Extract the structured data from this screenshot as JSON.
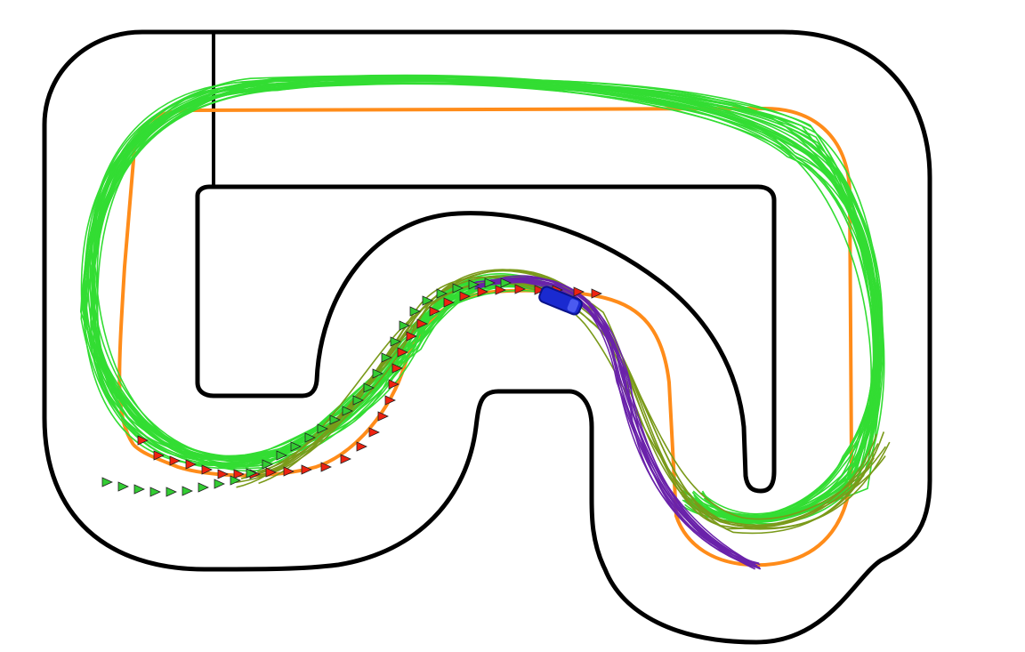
{
  "colors": {
    "background": "#ffffff",
    "track_boundary": "#000000",
    "reference_path": "#ff8c1a",
    "rollouts_green": "#33dd33",
    "rollouts_olive": "#7a9a1a",
    "rollouts_purple": "#6a22aa",
    "marker_red": "#ee2211",
    "marker_green": "#33cc33",
    "vehicle": "#1a2ad0"
  },
  "icons": {
    "vehicle": "car-icon",
    "marker": "arrow-marker-icon"
  }
}
